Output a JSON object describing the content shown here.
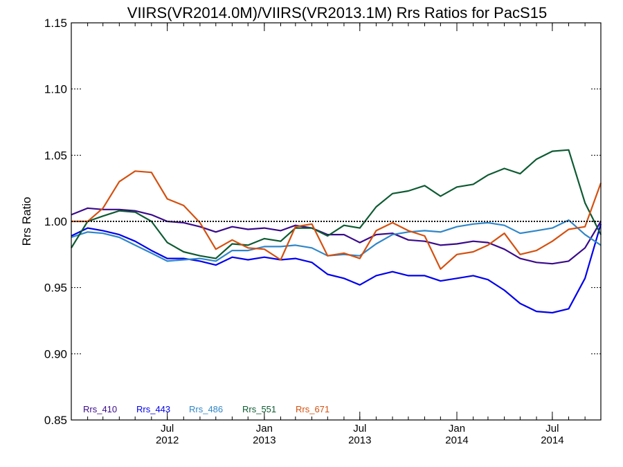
{
  "chart_data": {
    "type": "line",
    "title": "VIIRS(VR2014.0M)/VIIRS(VR2013.1M)  Rrs Ratios for PacS15",
    "xlabel": "",
    "ylabel": "Rrs Ratio",
    "ylim": [
      0.85,
      1.15
    ],
    "yticks": [
      "0.85",
      "0.90",
      "0.95",
      "1.00",
      "1.05",
      "1.10",
      "1.15"
    ],
    "xlim": [
      "2012-01-01",
      "2014-10-01"
    ],
    "xticks": [
      {
        "date": "2012-07-01",
        "line1": "Jul",
        "line2": "2012"
      },
      {
        "date": "2013-01-01",
        "line1": "Jan",
        "line2": "2013"
      },
      {
        "date": "2013-07-01",
        "line1": "Jul",
        "line2": "2013"
      },
      {
        "date": "2014-01-01",
        "line1": "Jan",
        "line2": "2014"
      },
      {
        "date": "2014-07-01",
        "line1": "Jul",
        "line2": "2014"
      }
    ],
    "reference_line": 1.0,
    "grid": false,
    "legend_position": "bottom-left",
    "x": [
      "2012-01-01",
      "2012-02-01",
      "2012-03-01",
      "2012-04-01",
      "2012-05-01",
      "2012-06-01",
      "2012-07-01",
      "2012-08-01",
      "2012-09-01",
      "2012-10-01",
      "2012-11-01",
      "2012-12-01",
      "2013-01-01",
      "2013-02-01",
      "2013-03-01",
      "2013-04-01",
      "2013-05-01",
      "2013-06-01",
      "2013-07-01",
      "2013-08-01",
      "2013-09-01",
      "2013-10-01",
      "2013-11-01",
      "2013-12-01",
      "2014-01-01",
      "2014-02-01",
      "2014-03-01",
      "2014-04-01",
      "2014-05-01",
      "2014-06-01",
      "2014-07-01",
      "2014-08-01",
      "2014-09-01",
      "2014-10-01"
    ],
    "series": [
      {
        "name": "Rrs_410",
        "color": "#3a0a8a",
        "values": [
          1.005,
          1.01,
          1.009,
          1.009,
          1.008,
          1.005,
          1.0,
          0.999,
          0.996,
          0.992,
          0.996,
          0.994,
          0.995,
          0.993,
          0.997,
          0.995,
          0.99,
          0.99,
          0.984,
          0.99,
          0.991,
          0.986,
          0.985,
          0.982,
          0.983,
          0.985,
          0.984,
          0.979,
          0.972,
          0.969,
          0.968,
          0.97,
          0.98,
          1.0
        ]
      },
      {
        "name": "Rrs_443",
        "color": "#0000ee",
        "values": [
          0.989,
          0.995,
          0.993,
          0.99,
          0.985,
          0.978,
          0.972,
          0.972,
          0.97,
          0.967,
          0.973,
          0.971,
          0.973,
          0.971,
          0.972,
          0.969,
          0.96,
          0.957,
          0.952,
          0.959,
          0.962,
          0.959,
          0.959,
          0.955,
          0.957,
          0.959,
          0.956,
          0.948,
          0.938,
          0.932,
          0.931,
          0.934,
          0.957,
          0.998
        ]
      },
      {
        "name": "Rrs_486",
        "color": "#2f86c8",
        "values": [
          0.988,
          0.992,
          0.991,
          0.988,
          0.982,
          0.976,
          0.97,
          0.971,
          0.972,
          0.97,
          0.978,
          0.978,
          0.981,
          0.981,
          0.982,
          0.98,
          0.974,
          0.975,
          0.974,
          0.983,
          0.99,
          0.992,
          0.993,
          0.992,
          0.996,
          0.998,
          0.999,
          0.997,
          0.991,
          0.993,
          0.995,
          1.001,
          0.99,
          0.982
        ]
      },
      {
        "name": "Rrs_551",
        "color": "#0d5a32",
        "values": [
          0.98,
          1.0,
          1.004,
          1.008,
          1.007,
          1.0,
          0.984,
          0.977,
          0.974,
          0.972,
          0.983,
          0.982,
          0.987,
          0.985,
          0.995,
          0.995,
          0.989,
          0.997,
          0.995,
          1.011,
          1.021,
          1.023,
          1.027,
          1.019,
          1.026,
          1.028,
          1.035,
          1.04,
          1.036,
          1.047,
          1.053,
          1.054,
          1.014,
          0.99
        ]
      },
      {
        "name": "Rrs_671",
        "color": "#d4500f",
        "values": [
          1.0,
          1.0,
          1.01,
          1.03,
          1.038,
          1.037,
          1.017,
          1.012,
          0.999,
          0.979,
          0.986,
          0.98,
          0.979,
          0.971,
          0.996,
          0.998,
          0.974,
          0.976,
          0.972,
          0.993,
          0.999,
          0.993,
          0.989,
          0.964,
          0.975,
          0.977,
          0.982,
          0.991,
          0.975,
          0.978,
          0.985,
          0.994,
          0.996,
          1.029
        ]
      }
    ]
  }
}
